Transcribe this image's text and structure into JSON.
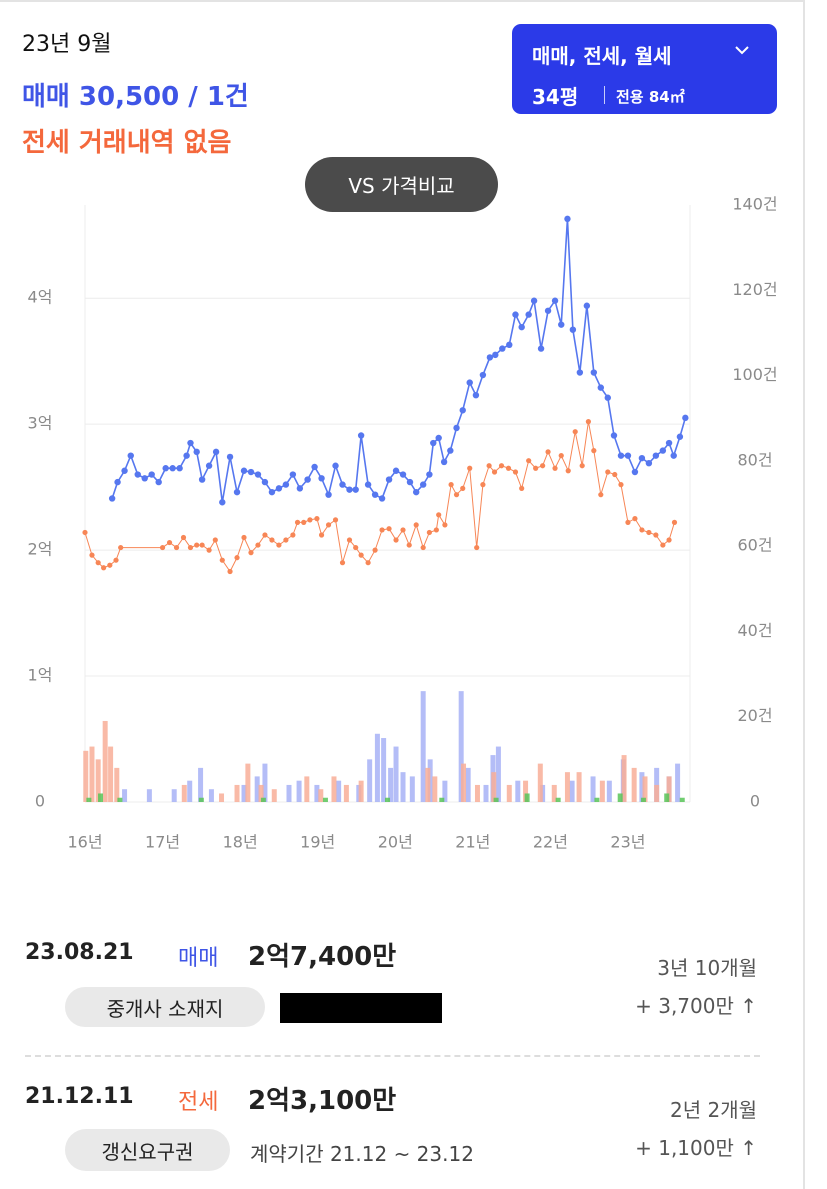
{
  "header": {
    "month": "23년 9월",
    "sale_summary": "매매 30,500 / 1건",
    "jeonse_summary": "전세 거래내역 없음",
    "compare_button": "VS 가격비교",
    "filter": {
      "types": "매매, 전세, 월세",
      "pyeong": "34평",
      "area": "전용 84㎡"
    }
  },
  "chart_data": {
    "type": "line",
    "xlim": [
      16,
      23.8
    ],
    "xticks": [
      {
        "value": 16,
        "label": "16년"
      },
      {
        "value": 17,
        "label": "17년"
      },
      {
        "value": 18,
        "label": "18년"
      },
      {
        "value": 19,
        "label": "19년"
      },
      {
        "value": 20,
        "label": "20년"
      },
      {
        "value": 21,
        "label": "21년"
      },
      {
        "value": 22,
        "label": "22년"
      },
      {
        "value": 23,
        "label": "23년"
      }
    ],
    "ylim": [
      0,
      4.74
    ],
    "yticks": [
      0,
      {
        "value": 1,
        "label": "1억"
      },
      {
        "value": 2,
        "label": "2억"
      },
      {
        "value": 3,
        "label": "3억"
      },
      {
        "value": 4,
        "label": "4억"
      }
    ],
    "y2lim": [
      0,
      140
    ],
    "y2ticks": [
      0,
      {
        "value": 20,
        "label": "20건"
      },
      {
        "value": 40,
        "label": "40건"
      },
      {
        "value": 60,
        "label": "60건"
      },
      {
        "value": 80,
        "label": "80건"
      },
      {
        "value": 100,
        "label": "100건"
      },
      {
        "value": 120,
        "label": "120건"
      },
      {
        "value": 140,
        "label": "140건"
      }
    ],
    "grid": true,
    "series": [
      {
        "type": "bar",
        "axis": "y2",
        "color": "#a7b1f6",
        "x": [
          16.51,
          16.83,
          17.15,
          17.35,
          17.49,
          17.63,
          18.05,
          18.22,
          18.32,
          18.63,
          18.76,
          18.99,
          19.27,
          19.53,
          19.67,
          19.77,
          19.85,
          19.94,
          20.01,
          20.1,
          20.22,
          20.36,
          20.45,
          20.64,
          20.85,
          20.94,
          21.17,
          21.26,
          21.33,
          21.58,
          21.9,
          22.28,
          22.55,
          22.76,
          22.94,
          23.18,
          23.37,
          23.53,
          23.64
        ],
        "values": [
          3,
          3,
          3,
          5,
          8,
          3,
          4,
          6,
          9,
          4,
          5,
          4,
          5,
          4,
          10,
          16,
          15,
          8,
          13,
          7,
          6,
          26,
          10,
          5,
          26,
          8,
          4,
          11,
          13,
          5,
          4,
          5,
          6,
          5,
          10,
          7,
          8,
          6,
          9
        ]
      },
      {
        "type": "bar",
        "axis": "y2",
        "color": "#f8ae98",
        "x": [
          16.01,
          16.09,
          16.17,
          16.26,
          16.33,
          16.41,
          17.28,
          17.76,
          17.96,
          18.1,
          18.27,
          18.44,
          18.86,
          19.04,
          19.21,
          19.37,
          19.56,
          20.42,
          20.51,
          20.88,
          21.06,
          21.27,
          21.47,
          21.68,
          21.87,
          22.05,
          22.22,
          22.37,
          22.67,
          22.95,
          23.08,
          23.22,
          23.37,
          23.53
        ],
        "values": [
          12,
          13,
          10,
          19,
          13,
          8,
          4,
          2,
          4,
          9,
          4,
          3,
          6,
          3,
          6,
          4,
          5,
          8,
          6,
          9,
          4,
          7,
          4,
          5,
          9,
          4,
          7,
          7,
          5,
          11,
          8,
          6,
          4,
          6
        ]
      },
      {
        "type": "bar",
        "axis": "y2",
        "color": "#58c458",
        "x": [
          16.05,
          16.2,
          16.45,
          17.5,
          18.3,
          19.1,
          19.9,
          20.6,
          21.3,
          21.7,
          22.1,
          22.6,
          22.9,
          23.2,
          23.5,
          23.7
        ],
        "values": [
          1,
          2,
          1,
          1,
          1,
          1,
          1,
          1,
          1,
          2,
          1,
          1,
          2,
          1,
          2,
          1
        ]
      },
      {
        "type": "line",
        "color": "#f78656",
        "marker": 2.6,
        "width": 1,
        "x": [
          16.0,
          16.09,
          16.17,
          16.24,
          16.32,
          16.4,
          16.46,
          17.0,
          17.09,
          17.18,
          17.27,
          17.36,
          17.44,
          17.51,
          17.6,
          17.68,
          17.77,
          17.87,
          17.96,
          18.05,
          18.14,
          18.23,
          18.32,
          18.41,
          18.5,
          18.59,
          18.68,
          18.74,
          18.82,
          18.9,
          18.99,
          19.05,
          19.14,
          19.23,
          19.32,
          19.41,
          19.49,
          19.56,
          19.65,
          19.74,
          19.83,
          19.92,
          20.01,
          20.1,
          20.18,
          20.27,
          20.36,
          20.44,
          20.53,
          20.56,
          20.64,
          20.72,
          20.79,
          20.87,
          20.96,
          21.05,
          21.13,
          21.21,
          21.28,
          21.37,
          21.46,
          21.55,
          21.63,
          21.72,
          21.81,
          21.9,
          21.97,
          22.06,
          22.14,
          22.23,
          22.32,
          22.41,
          22.49,
          22.56,
          22.65,
          22.74,
          22.83,
          22.91,
          23.0,
          23.09,
          23.18,
          23.27,
          23.36,
          23.45,
          23.53,
          23.6
        ],
        "values": [
          2.14,
          1.96,
          1.9,
          1.86,
          1.88,
          1.92,
          2.02,
          2.02,
          2.06,
          2.02,
          2.1,
          2.02,
          2.04,
          2.04,
          2.0,
          2.08,
          1.92,
          1.83,
          1.94,
          2.1,
          1.98,
          2.04,
          2.12,
          2.08,
          2.04,
          2.08,
          2.12,
          2.22,
          2.22,
          2.24,
          2.25,
          2.12,
          2.2,
          2.24,
          1.9,
          2.08,
          2.02,
          1.96,
          1.9,
          2.0,
          2.16,
          2.17,
          2.08,
          2.16,
          2.04,
          2.2,
          2.02,
          2.14,
          2.16,
          2.28,
          2.2,
          2.52,
          2.44,
          2.49,
          2.65,
          2.02,
          2.52,
          2.67,
          2.62,
          2.67,
          2.65,
          2.62,
          2.49,
          2.71,
          2.65,
          2.67,
          2.78,
          2.65,
          2.75,
          2.63,
          2.94,
          2.67,
          3.02,
          2.79,
          2.44,
          2.62,
          2.6,
          2.52,
          2.22,
          2.25,
          2.16,
          2.14,
          2.12,
          2.04,
          2.08,
          2.22
        ]
      },
      {
        "type": "line",
        "color": "#5677ef",
        "marker": 3.2,
        "width": 1.6,
        "x": [
          16.35,
          16.42,
          16.51,
          16.59,
          16.68,
          16.77,
          16.86,
          16.95,
          17.04,
          17.13,
          17.22,
          17.31,
          17.36,
          17.44,
          17.51,
          17.6,
          17.69,
          17.77,
          17.87,
          17.96,
          18.05,
          18.14,
          18.23,
          18.32,
          18.41,
          18.5,
          18.59,
          18.68,
          18.77,
          18.87,
          18.96,
          19.05,
          19.14,
          19.23,
          19.32,
          19.41,
          19.49,
          19.56,
          19.65,
          19.74,
          19.83,
          19.92,
          20.01,
          20.1,
          20.19,
          20.27,
          20.36,
          20.44,
          20.49,
          20.56,
          20.63,
          20.71,
          20.79,
          20.87,
          20.96,
          21.04,
          21.13,
          21.22,
          21.29,
          21.38,
          21.47,
          21.55,
          21.63,
          21.72,
          21.79,
          21.88,
          21.97,
          22.06,
          22.14,
          22.22,
          22.29,
          22.38,
          22.47,
          22.56,
          22.65,
          22.74,
          22.82,
          22.91,
          23.0,
          23.09,
          23.18,
          23.27,
          23.36,
          23.45,
          23.53,
          23.59,
          23.67,
          23.74
        ],
        "values": [
          2.41,
          2.54,
          2.63,
          2.75,
          2.6,
          2.57,
          2.6,
          2.54,
          2.65,
          2.65,
          2.65,
          2.75,
          2.85,
          2.78,
          2.56,
          2.67,
          2.78,
          2.38,
          2.74,
          2.46,
          2.63,
          2.62,
          2.6,
          2.54,
          2.46,
          2.49,
          2.52,
          2.6,
          2.49,
          2.56,
          2.66,
          2.57,
          2.44,
          2.67,
          2.52,
          2.48,
          2.48,
          2.91,
          2.52,
          2.44,
          2.41,
          2.56,
          2.63,
          2.6,
          2.54,
          2.46,
          2.52,
          2.6,
          2.85,
          2.89,
          2.7,
          2.79,
          2.97,
          3.11,
          3.33,
          3.23,
          3.39,
          3.53,
          3.55,
          3.6,
          3.63,
          3.87,
          3.77,
          3.87,
          3.98,
          3.6,
          3.9,
          3.98,
          3.79,
          4.63,
          3.75,
          3.41,
          3.94,
          3.41,
          3.29,
          3.21,
          2.91,
          2.75,
          2.75,
          2.62,
          2.73,
          2.69,
          2.75,
          2.79,
          2.85,
          2.75,
          2.9,
          3.05
        ]
      }
    ]
  },
  "transactions": [
    {
      "date": "23.08.21",
      "type": "매매",
      "price": "2억7,400만",
      "tag": "중개사 소재지",
      "duration": "3년 10개월",
      "change": "+ 3,700만 ↑"
    },
    {
      "date": "21.12.11",
      "type": "전세",
      "price": "2억3,100만",
      "tag": "갱신요구권",
      "contract": "계약기간 21.12 ~ 23.12",
      "duration": "2년 2개월",
      "change": "+ 1,100만 ↑"
    }
  ]
}
